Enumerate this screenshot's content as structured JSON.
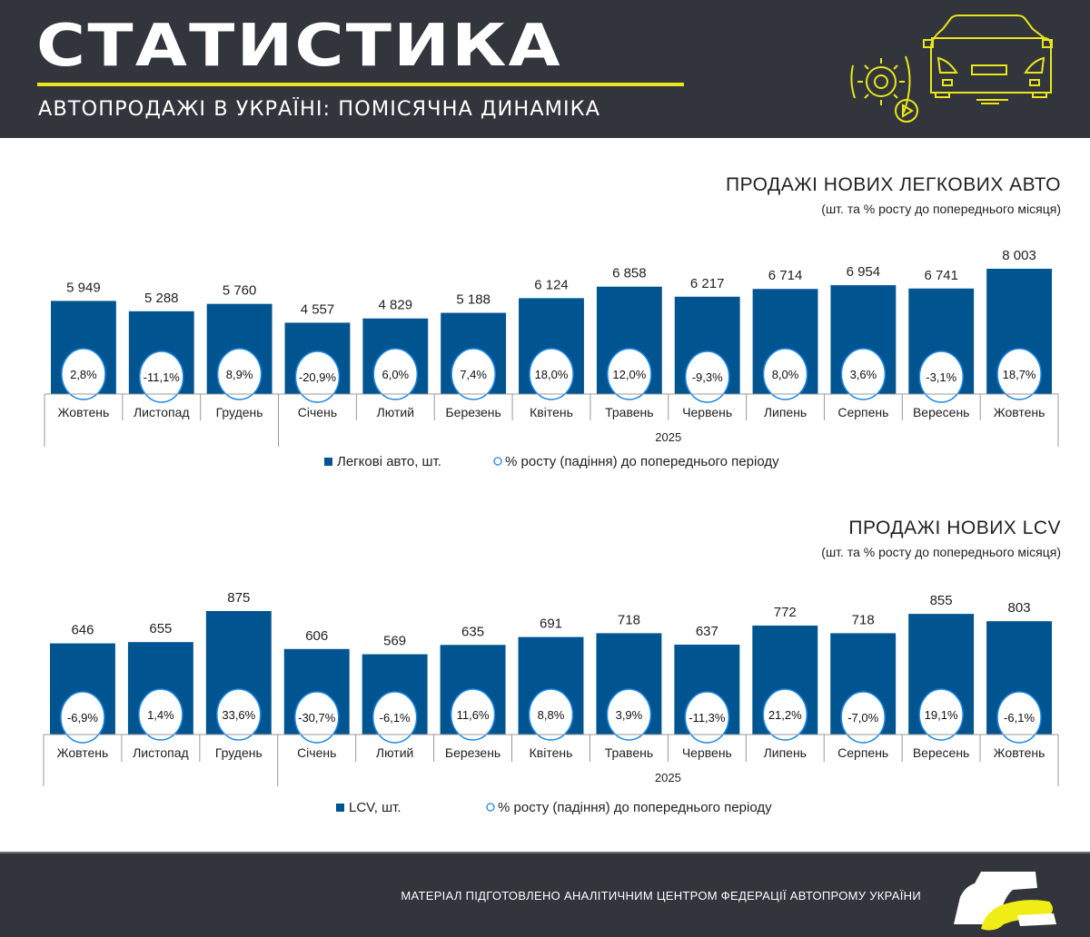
{
  "header": {
    "title": "СТАТИСТИКА",
    "subtitle": "АВТОПРОДАЖІ В УКРАЇНІ: ПОМІСЯЧНА ДИНАМІКА"
  },
  "footer": {
    "text": "МАТЕРІАЛ ПІДГОТОВЛЕНО АНАЛІТИЧНИМ ЦЕНТРОМ ФЕДЕРАЦІЇ АВТОПРОМУ УКРАЇНИ"
  },
  "colors": {
    "bar": "#005591",
    "circle_stroke": "#1e88e5",
    "accent": "#e9e61b",
    "dark": "#32353c"
  },
  "chart_data": [
    {
      "type": "bar",
      "title": "ПРОДАЖІ НОВИХ ЛЕГКОВИХ АВТО",
      "subtitle": "(шт. та % росту до попереднього місяця)",
      "categories": [
        "Жовтень",
        "Листопад",
        "Грудень",
        "Січень",
        "Лютий",
        "Березень",
        "Квітень",
        "Травень",
        "Червень",
        "Липень",
        "Серпень",
        "Вересень",
        "Жовтень"
      ],
      "group_label": "2025",
      "values": [
        5949,
        5288,
        5760,
        4557,
        4829,
        5188,
        6124,
        6858,
        6217,
        6714,
        6954,
        6741,
        8003
      ],
      "value_labels": [
        "5 949",
        "5 288",
        "5 760",
        "4 557",
        "4 829",
        "5 188",
        "6 124",
        "6 858",
        "6 217",
        "6 714",
        "6 954",
        "6 741",
        "8 003"
      ],
      "growth": [
        "2,8%",
        "-11,1%",
        "8,9%",
        "-20,9%",
        "6,0%",
        "7,4%",
        "18,0%",
        "12,0%",
        "-9,3%",
        "8,0%",
        "3,6%",
        "-3,1%",
        "18,7%"
      ],
      "legend": [
        "Легкові авто, шт.",
        "% росту  (падіння) до попереднього періоду"
      ],
      "ylim": [
        0,
        8003
      ]
    },
    {
      "type": "bar",
      "title": "ПРОДАЖІ НОВИХ  LCV",
      "subtitle": "(шт. та % росту до попереднього  місяця)",
      "categories": [
        "Жовтень",
        "Листопад",
        "Грудень",
        "Січень",
        "Лютий",
        "Березень",
        "Квітень",
        "Травень",
        "Червень",
        "Липень",
        "Серпень",
        "Вересень",
        "Жовтень"
      ],
      "group_label": "2025",
      "values": [
        646,
        655,
        875,
        606,
        569,
        635,
        691,
        718,
        637,
        772,
        718,
        855,
        803
      ],
      "value_labels": [
        "646",
        "655",
        "875",
        "606",
        "569",
        "635",
        "691",
        "718",
        "637",
        "772",
        "718",
        "855",
        "803"
      ],
      "growth": [
        "-6,9%",
        "1,4%",
        "33,6%",
        "-30,7%",
        "-6,1%",
        "11,6%",
        "8,8%",
        "3,9%",
        "-11,3%",
        "21,2%",
        "-7,0%",
        "19,1%",
        "-6,1%"
      ],
      "legend": [
        "LCV, шт.",
        "% росту  (падіння) до попереднього періоду"
      ],
      "ylim": [
        0,
        875
      ]
    }
  ]
}
